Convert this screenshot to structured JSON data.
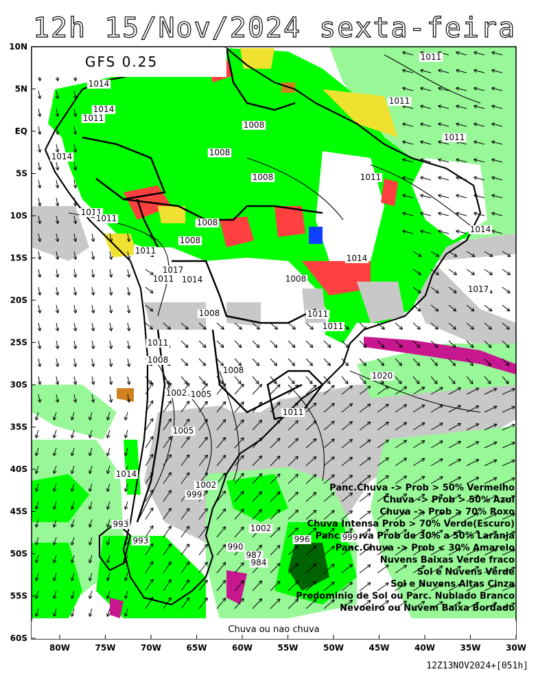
{
  "title": "12h 15/Nov/2024 sexta-feira",
  "model": "GFS 0.25",
  "bottom_label": "Chuva ou nao chuva",
  "run_stamp": "12Z13NOV2024+[051h]",
  "lat_ticks": [
    "10N",
    "5N",
    "EQ",
    "5S",
    "10S",
    "15S",
    "20S",
    "25S",
    "30S",
    "35S",
    "40S",
    "45S",
    "50S",
    "55S",
    "60S"
  ],
  "lon_ticks": [
    "80W",
    "75W",
    "70W",
    "65W",
    "60W",
    "55W",
    "50W",
    "45W",
    "40W",
    "35W",
    "30W"
  ],
  "legend": [
    "Panc.Chuva -> Prob > 50% Vermelho",
    "Chuva -> Prob > 50% Azul",
    "Chuva -> Prob > 70% Roxo",
    "Chuva Intensa Prob > 70% Verde(Escuro)",
    "Panc.Chuva Prob de 30% a 50% Laranja",
    "Panc.Chuva -> Prob < 30% Amarelo",
    "Nuvens Baixas Verde fraco",
    "Sol e Nuvens Verde",
    "Sol e Nuvens Altas Cinza",
    "Predominio de Sol ou Parc. Nublado Branco",
    "Nevoeiro ou Nuvem Baixa Bordado"
  ],
  "isobar_labels": [
    "1011",
    "1014",
    "1014",
    "1011",
    "1008",
    "1014",
    "1008",
    "1008",
    "1011",
    "1011",
    "1011",
    "1011",
    "1008",
    "1008",
    "1014",
    "1011",
    "1017",
    "1011",
    "1014",
    "1011",
    "1014",
    "1017",
    "1008",
    "1011",
    "1011",
    "1008",
    "1020",
    "1011",
    "1008",
    "1005",
    "1002",
    "1005",
    "1002",
    "1011",
    "1014",
    "999",
    "1002",
    "996",
    "993",
    "999",
    "990",
    "987",
    "984",
    "993",
    "1008"
  ],
  "colors": {
    "sol_nuvens": "#00ff00",
    "nuvens_baixas": "#98f898",
    "cinza": "#c8c8c8",
    "vermelho": "#ff4040",
    "amarelo": "#f0e030",
    "laranja": "#d08020",
    "azul": "#1040ff",
    "roxo": "#c81890",
    "verde_escuro": "#006400"
  }
}
